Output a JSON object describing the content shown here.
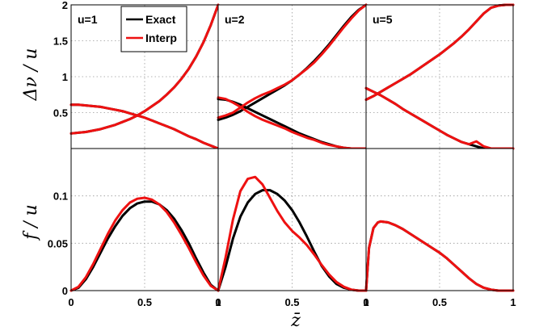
{
  "colors": {
    "exact": "#000000",
    "interp": "#ee1111"
  },
  "legend": {
    "placement": "top-center of first panel",
    "entries": [
      {
        "label": "Exact",
        "color": "#000000"
      },
      {
        "label": "Interp",
        "color": "#ee1111"
      }
    ]
  },
  "chart_data": {
    "type": "line",
    "grid": true,
    "layout": "2 rows x 3 columns, shared axes",
    "xlabel": "z̄",
    "x_ticks": [
      "0",
      "0.5",
      "1"
    ],
    "xlim": [
      0,
      1
    ],
    "rows": [
      {
        "ylabel": "Δν / u",
        "ylim": [
          0,
          2
        ],
        "y_ticks": [
          "0.5",
          "1",
          "1.5",
          "2"
        ]
      },
      {
        "ylabel": "f / u",
        "ylim": [
          0,
          0.15
        ],
        "y_ticks": [
          "0",
          "0.05",
          "0.1"
        ]
      }
    ],
    "panels": [
      {
        "row": 0,
        "col": 0,
        "label": "u=1",
        "series": [
          {
            "name": "Exact",
            "curve": 1,
            "x": [
              0,
              0.05,
              0.1,
              0.15,
              0.2,
              0.25,
              0.3,
              0.35,
              0.4,
              0.45,
              0.5,
              0.55,
              0.6,
              0.65,
              0.7,
              0.75,
              0.8,
              0.85,
              0.9,
              0.95,
              1
            ],
            "y": [
              0.21,
              0.22,
              0.23,
              0.25,
              0.27,
              0.3,
              0.33,
              0.37,
              0.41,
              0.46,
              0.52,
              0.59,
              0.66,
              0.75,
              0.85,
              0.97,
              1.11,
              1.28,
              1.48,
              1.72,
              2.0
            ]
          },
          {
            "name": "Exact",
            "curve": 2,
            "x": [
              0,
              0.05,
              0.1,
              0.15,
              0.2,
              0.25,
              0.3,
              0.35,
              0.4,
              0.45,
              0.5,
              0.55,
              0.6,
              0.65,
              0.7,
              0.75,
              0.8,
              0.85,
              0.9,
              0.95,
              1
            ],
            "y": [
              0.61,
              0.61,
              0.6,
              0.59,
              0.58,
              0.56,
              0.54,
              0.52,
              0.49,
              0.46,
              0.43,
              0.39,
              0.35,
              0.31,
              0.27,
              0.22,
              0.17,
              0.13,
              0.08,
              0.04,
              0.0
            ]
          },
          {
            "name": "Interp",
            "curve": 1,
            "x": [
              0,
              0.05,
              0.1,
              0.15,
              0.2,
              0.25,
              0.3,
              0.35,
              0.4,
              0.45,
              0.5,
              0.55,
              0.6,
              0.65,
              0.7,
              0.75,
              0.8,
              0.85,
              0.9,
              0.95,
              1
            ],
            "y": [
              0.21,
              0.22,
              0.23,
              0.25,
              0.27,
              0.3,
              0.33,
              0.37,
              0.41,
              0.46,
              0.52,
              0.59,
              0.66,
              0.75,
              0.85,
              0.97,
              1.11,
              1.28,
              1.48,
              1.72,
              2.0
            ]
          },
          {
            "name": "Interp",
            "curve": 2,
            "x": [
              0,
              0.05,
              0.1,
              0.15,
              0.2,
              0.25,
              0.3,
              0.35,
              0.4,
              0.45,
              0.5,
              0.55,
              0.6,
              0.65,
              0.7,
              0.75,
              0.8,
              0.85,
              0.9,
              0.95,
              1
            ],
            "y": [
              0.61,
              0.61,
              0.6,
              0.59,
              0.58,
              0.56,
              0.54,
              0.52,
              0.49,
              0.46,
              0.43,
              0.39,
              0.35,
              0.31,
              0.27,
              0.22,
              0.17,
              0.13,
              0.08,
              0.04,
              0.0
            ]
          }
        ]
      },
      {
        "row": 0,
        "col": 1,
        "label": "u=2",
        "series": [
          {
            "name": "Exact",
            "curve": 1,
            "x": [
              0,
              0.05,
              0.1,
              0.15,
              0.2,
              0.25,
              0.3,
              0.35,
              0.4,
              0.45,
              0.5,
              0.55,
              0.6,
              0.65,
              0.7,
              0.75,
              0.8,
              0.85,
              0.9,
              0.95,
              1
            ],
            "y": [
              0.4,
              0.43,
              0.47,
              0.52,
              0.58,
              0.64,
              0.7,
              0.76,
              0.82,
              0.88,
              0.95,
              1.03,
              1.12,
              1.22,
              1.33,
              1.45,
              1.58,
              1.71,
              1.83,
              1.93,
              2.0
            ]
          },
          {
            "name": "Exact",
            "curve": 2,
            "x": [
              0,
              0.05,
              0.1,
              0.15,
              0.2,
              0.25,
              0.3,
              0.35,
              0.4,
              0.45,
              0.5,
              0.55,
              0.6,
              0.65,
              0.7,
              0.75,
              0.8,
              0.85,
              0.9,
              0.95,
              1
            ],
            "y": [
              0.69,
              0.68,
              0.65,
              0.61,
              0.56,
              0.51,
              0.46,
              0.41,
              0.36,
              0.31,
              0.26,
              0.21,
              0.17,
              0.13,
              0.09,
              0.06,
              0.03,
              0.01,
              0.0,
              0.0,
              0.0
            ]
          },
          {
            "name": "Interp",
            "curve": 1,
            "x": [
              0,
              0.05,
              0.1,
              0.15,
              0.2,
              0.25,
              0.3,
              0.35,
              0.4,
              0.45,
              0.5,
              0.55,
              0.6,
              0.65,
              0.7,
              0.75,
              0.8,
              0.85,
              0.9,
              0.95,
              1
            ],
            "y": [
              0.43,
              0.46,
              0.5,
              0.57,
              0.64,
              0.7,
              0.75,
              0.79,
              0.84,
              0.89,
              0.95,
              1.03,
              1.11,
              1.2,
              1.31,
              1.43,
              1.56,
              1.69,
              1.81,
              1.92,
              2.0
            ]
          },
          {
            "name": "Interp",
            "curve": 2,
            "x": [
              0,
              0.05,
              0.1,
              0.15,
              0.2,
              0.25,
              0.3,
              0.35,
              0.4,
              0.45,
              0.5,
              0.55,
              0.6,
              0.65,
              0.7,
              0.75,
              0.8,
              0.85,
              0.9,
              0.95,
              1
            ],
            "y": [
              0.71,
              0.69,
              0.64,
              0.58,
              0.51,
              0.45,
              0.4,
              0.36,
              0.32,
              0.28,
              0.23,
              0.19,
              0.15,
              0.12,
              0.08,
              0.05,
              0.03,
              0.01,
              0.0,
              0.0,
              0.0
            ]
          }
        ]
      },
      {
        "row": 0,
        "col": 2,
        "label": "u=5",
        "series": [
          {
            "name": "Exact",
            "curve": 1,
            "x": [
              0,
              0.05,
              0.1,
              0.15,
              0.2,
              0.25,
              0.3,
              0.35,
              0.4,
              0.45,
              0.5,
              0.55,
              0.6,
              0.65,
              0.7,
              0.75,
              0.8,
              0.85,
              0.9,
              0.95,
              1
            ],
            "y": [
              0.68,
              0.73,
              0.79,
              0.85,
              0.91,
              0.97,
              1.03,
              1.1,
              1.17,
              1.24,
              1.31,
              1.39,
              1.47,
              1.56,
              1.66,
              1.77,
              1.88,
              1.96,
              1.99,
              2.0,
              2.0
            ]
          },
          {
            "name": "Exact",
            "curve": 2,
            "x": [
              0,
              0.05,
              0.1,
              0.15,
              0.2,
              0.25,
              0.3,
              0.35,
              0.4,
              0.45,
              0.5,
              0.55,
              0.6,
              0.65,
              0.7,
              0.75,
              0.8,
              0.85,
              0.9,
              0.95,
              1
            ],
            "y": [
              0.84,
              0.79,
              0.74,
              0.68,
              0.62,
              0.55,
              0.49,
              0.43,
              0.37,
              0.31,
              0.25,
              0.19,
              0.14,
              0.09,
              0.06,
              0.03,
              0.0,
              0.0,
              0.0,
              0.0,
              0.0
            ]
          },
          {
            "name": "Interp",
            "curve": 1,
            "x": [
              0,
              0.05,
              0.1,
              0.15,
              0.2,
              0.25,
              0.3,
              0.35,
              0.4,
              0.45,
              0.5,
              0.55,
              0.6,
              0.65,
              0.7,
              0.75,
              0.8,
              0.85,
              0.9,
              0.95,
              1
            ],
            "y": [
              0.68,
              0.73,
              0.79,
              0.85,
              0.91,
              0.97,
              1.03,
              1.1,
              1.17,
              1.24,
              1.31,
              1.39,
              1.47,
              1.56,
              1.66,
              1.77,
              1.88,
              1.96,
              1.99,
              2.0,
              2.0
            ]
          },
          {
            "name": "Interp",
            "curve": 2,
            "x": [
              0,
              0.05,
              0.1,
              0.15,
              0.2,
              0.25,
              0.3,
              0.35,
              0.4,
              0.45,
              0.5,
              0.55,
              0.6,
              0.65,
              0.7,
              0.75,
              0.8,
              0.85,
              0.9,
              0.95,
              1
            ],
            "y": [
              0.84,
              0.79,
              0.74,
              0.68,
              0.62,
              0.55,
              0.49,
              0.43,
              0.37,
              0.31,
              0.25,
              0.19,
              0.14,
              0.09,
              0.06,
              0.1,
              0.03,
              0.0,
              0.0,
              0.0,
              0.0
            ]
          }
        ]
      },
      {
        "row": 1,
        "col": 0,
        "label": "",
        "series": [
          {
            "name": "Exact",
            "x": [
              0,
              0.05,
              0.1,
              0.15,
              0.2,
              0.25,
              0.3,
              0.35,
              0.4,
              0.45,
              0.5,
              0.55,
              0.6,
              0.65,
              0.7,
              0.75,
              0.8,
              0.85,
              0.9,
              0.95,
              1
            ],
            "y": [
              0,
              0.003,
              0.012,
              0.025,
              0.04,
              0.055,
              0.068,
              0.079,
              0.087,
              0.092,
              0.094,
              0.094,
              0.091,
              0.085,
              0.076,
              0.064,
              0.05,
              0.034,
              0.019,
              0.006,
              0
            ]
          },
          {
            "name": "Interp",
            "x": [
              0,
              0.05,
              0.1,
              0.15,
              0.2,
              0.25,
              0.3,
              0.35,
              0.4,
              0.45,
              0.5,
              0.55,
              0.6,
              0.65,
              0.7,
              0.75,
              0.8,
              0.85,
              0.9,
              0.95,
              1
            ],
            "y": [
              0,
              0.004,
              0.014,
              0.028,
              0.044,
              0.06,
              0.074,
              0.085,
              0.093,
              0.097,
              0.098,
              0.096,
              0.091,
              0.083,
              0.072,
              0.059,
              0.045,
              0.03,
              0.016,
              0.005,
              0
            ]
          }
        ]
      },
      {
        "row": 1,
        "col": 1,
        "label": "",
        "series": [
          {
            "name": "Exact",
            "x": [
              0,
              0.05,
              0.1,
              0.15,
              0.2,
              0.25,
              0.3,
              0.35,
              0.4,
              0.45,
              0.5,
              0.55,
              0.6,
              0.65,
              0.7,
              0.75,
              0.8,
              0.85,
              0.9,
              0.95,
              1
            ],
            "y": [
              0,
              0.025,
              0.055,
              0.078,
              0.093,
              0.102,
              0.106,
              0.106,
              0.102,
              0.095,
              0.085,
              0.072,
              0.057,
              0.041,
              0.026,
              0.015,
              0.007,
              0.003,
              0.001,
              0,
              0
            ]
          },
          {
            "name": "Interp",
            "x": [
              0,
              0.05,
              0.1,
              0.15,
              0.2,
              0.25,
              0.3,
              0.35,
              0.4,
              0.45,
              0.5,
              0.55,
              0.6,
              0.65,
              0.7,
              0.75,
              0.8,
              0.85,
              0.9,
              0.95,
              1
            ],
            "y": [
              0,
              0.035,
              0.075,
              0.105,
              0.118,
              0.12,
              0.112,
              0.098,
              0.084,
              0.072,
              0.063,
              0.056,
              0.048,
              0.038,
              0.027,
              0.017,
              0.009,
              0.004,
              0.001,
              0,
              0
            ]
          }
        ]
      },
      {
        "row": 1,
        "col": 2,
        "label": "",
        "series": [
          {
            "name": "Exact",
            "x": [
              0,
              0.02,
              0.05,
              0.08,
              0.1,
              0.15,
              0.2,
              0.25,
              0.3,
              0.35,
              0.4,
              0.45,
              0.5,
              0.55,
              0.6,
              0.65,
              0.7,
              0.75,
              0.8,
              0.85,
              0.9,
              0.95,
              1
            ],
            "y": [
              0,
              0.045,
              0.066,
              0.072,
              0.073,
              0.072,
              0.069,
              0.065,
              0.06,
              0.055,
              0.05,
              0.045,
              0.04,
              0.034,
              0.027,
              0.02,
              0.013,
              0.007,
              0.003,
              0.001,
              0,
              0,
              0
            ]
          },
          {
            "name": "Interp",
            "x": [
              0,
              0.02,
              0.05,
              0.08,
              0.1,
              0.15,
              0.2,
              0.25,
              0.3,
              0.35,
              0.4,
              0.45,
              0.5,
              0.55,
              0.6,
              0.65,
              0.7,
              0.75,
              0.8,
              0.85,
              0.9,
              0.95,
              1
            ],
            "y": [
              0,
              0.045,
              0.066,
              0.072,
              0.073,
              0.072,
              0.069,
              0.065,
              0.06,
              0.055,
              0.05,
              0.045,
              0.04,
              0.034,
              0.027,
              0.02,
              0.013,
              0.007,
              0.003,
              0.001,
              0,
              0,
              0
            ]
          }
        ]
      }
    ]
  }
}
